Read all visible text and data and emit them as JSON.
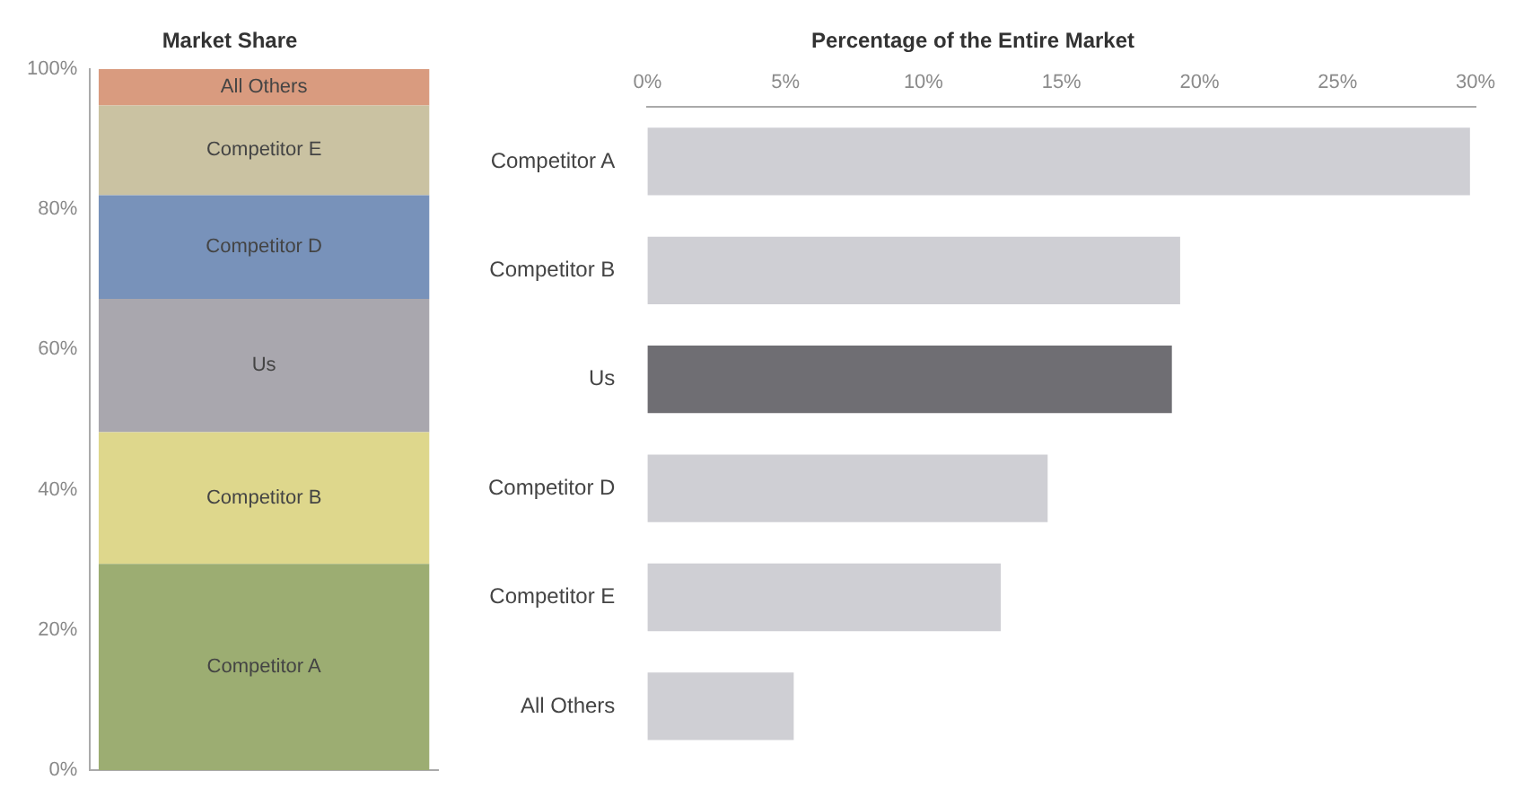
{
  "chart_data": [
    {
      "type": "bar",
      "title": "Market Share",
      "stacked": true,
      "categories": [
        null
      ],
      "tick_labels": "y",
      "legend": false,
      "grid": false,
      "ylim": [
        0,
        100
      ],
      "yticks": [
        {
          "value": 0,
          "label": "0%"
        },
        {
          "value": 20,
          "label": "20%"
        },
        {
          "value": 40,
          "label": "40%"
        },
        {
          "value": 60,
          "label": "60%"
        },
        {
          "value": 80,
          "label": "80%"
        },
        {
          "value": 100,
          "label": "100%"
        }
      ],
      "series": [
        {
          "name": "Competitor A",
          "color": "#9cad72",
          "values": [
            29.4
          ]
        },
        {
          "name": "Competitor B",
          "color": "#ded78c",
          "values": [
            18.8
          ]
        },
        {
          "name": "Us",
          "color": "#a9a7ae",
          "values": [
            19.0
          ]
        },
        {
          "name": "Competitor D",
          "color": "#7892ba",
          "values": [
            14.8
          ]
        },
        {
          "name": "Competitor E",
          "color": "#cac2a2",
          "values": [
            12.8
          ]
        },
        {
          "name": "All Others",
          "color": "#d99b7f",
          "values": [
            5.2
          ]
        }
      ]
    },
    {
      "type": "bar",
      "title": "Percentage of the Entire Market",
      "orientation": "horizontal",
      "legend": false,
      "grid": false,
      "categories": [
        "Competitor A",
        "Competitor B",
        "Us",
        "Competitor D",
        "Competitor E",
        "All Others"
      ],
      "values": [
        29.8,
        19.3,
        19.0,
        14.5,
        12.8,
        5.3
      ],
      "colors": [
        "#cfcfd4",
        "#cfcfd4",
        "#6f6e73",
        "#cfcfd4",
        "#cfcfd4",
        "#cfcfd4"
      ],
      "xlim": [
        0,
        30
      ],
      "xticks": [
        {
          "value": 0,
          "label": "0%"
        },
        {
          "value": 5,
          "label": "5%"
        },
        {
          "value": 10,
          "label": "10%"
        },
        {
          "value": 15,
          "label": "15%"
        },
        {
          "value": 20,
          "label": "20%"
        },
        {
          "value": 25,
          "label": "25%"
        },
        {
          "value": 30,
          "label": "30%"
        }
      ]
    }
  ]
}
